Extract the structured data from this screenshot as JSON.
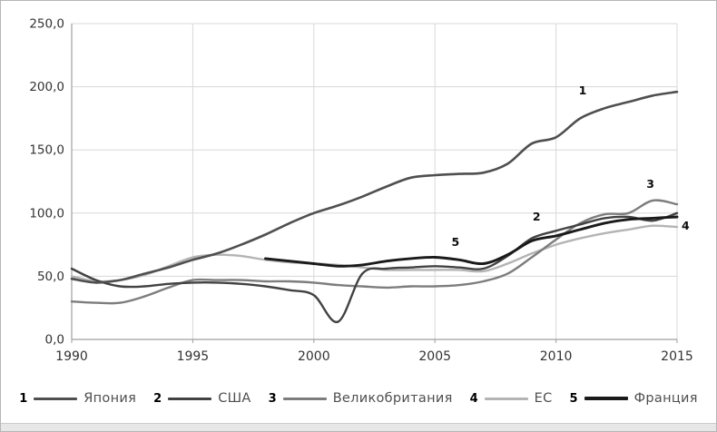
{
  "figure": {
    "background": "#ffffff",
    "border_color": "#b6b6b6",
    "footer_strip_color": "#e7e7e7",
    "plot": {
      "grid_color": "#d8d8d8",
      "axis_color": "#9f9f9f",
      "tick_label_color": "#333333",
      "annotation_color": "#0d0d0d"
    }
  },
  "chart_data": {
    "type": "line",
    "title": "",
    "xlabel": "",
    "ylabel": "",
    "xlim": [
      1990,
      2015
    ],
    "ylim": [
      0,
      250
    ],
    "grid": true,
    "legend_position": "bottom",
    "x_ticks": [
      {
        "v": 1990,
        "label": "1990"
      },
      {
        "v": 1995,
        "label": "1995"
      },
      {
        "v": 2000,
        "label": "2000"
      },
      {
        "v": 2005,
        "label": "2005"
      },
      {
        "v": 2010,
        "label": "2010"
      },
      {
        "v": 2015,
        "label": "2015"
      }
    ],
    "y_ticks": [
      {
        "v": 0,
        "label": "0,0"
      },
      {
        "v": 50,
        "label": "50,0"
      },
      {
        "v": 100,
        "label": "100,0"
      },
      {
        "v": 150,
        "label": "150,0"
      },
      {
        "v": 200,
        "label": "200,0"
      },
      {
        "v": 250,
        "label": "250,0"
      }
    ],
    "series": [
      {
        "legend_num": "1",
        "name": "Япония",
        "color": "#4f4f4f",
        "width": 2.6,
        "swatch_height": 3,
        "start_year": 1990,
        "values": [
          48,
          45,
          47,
          52,
          57,
          63,
          68,
          75,
          83,
          92,
          100,
          106,
          113,
          121,
          128,
          130,
          131,
          132,
          139,
          155,
          160,
          175,
          183,
          188,
          193,
          196
        ]
      },
      {
        "legend_num": "2",
        "name": "США",
        "color": "#424242",
        "width": 2.4,
        "swatch_height": 3,
        "start_year": 1990,
        "values": [
          56,
          47,
          42,
          42,
          44,
          45,
          45,
          44,
          42,
          39,
          35,
          14,
          52,
          56,
          57,
          58,
          57,
          56,
          66,
          80,
          86,
          91,
          96,
          97,
          94,
          100
        ]
      },
      {
        "legend_num": "3",
        "name": "Великобритания",
        "color": "#7d7d7d",
        "width": 2.4,
        "swatch_height": 3,
        "start_year": 1990,
        "values": [
          30,
          29,
          29,
          34,
          41,
          47,
          47,
          47,
          46,
          46,
          45,
          43,
          42,
          41,
          42,
          42,
          43,
          46,
          52,
          65,
          79,
          92,
          99,
          100,
          110,
          107
        ]
      },
      {
        "legend_num": "4",
        "name": "ЕС",
        "color": "#b4b4b4",
        "width": 2.4,
        "swatch_height": 3,
        "start_year": 1990,
        "values": [
          50,
          46,
          47,
          51,
          58,
          65,
          67,
          66,
          63,
          61,
          60,
          59,
          57,
          55,
          55,
          55,
          55,
          54,
          60,
          68,
          75,
          80,
          84,
          87,
          90,
          89
        ]
      },
      {
        "legend_num": "5",
        "name": "Франция",
        "color": "#1a1a1a",
        "width": 2.9,
        "swatch_height": 4,
        "start_year": 1998,
        "values": [
          64,
          62,
          60,
          58,
          59,
          62,
          64,
          65,
          63,
          60,
          67,
          78,
          82,
          87,
          92,
          95,
          96,
          97
        ]
      }
    ],
    "annotations": [
      {
        "label": "1",
        "year": 2011.1,
        "value": 194
      },
      {
        "label": "2",
        "year": 2009.2,
        "value": 94
      },
      {
        "label": "3",
        "year": 2013.9,
        "value": 120
      },
      {
        "label": "4",
        "year": 2015.35,
        "value": 87
      },
      {
        "label": "5",
        "year": 2005.85,
        "value": 74
      }
    ]
  }
}
